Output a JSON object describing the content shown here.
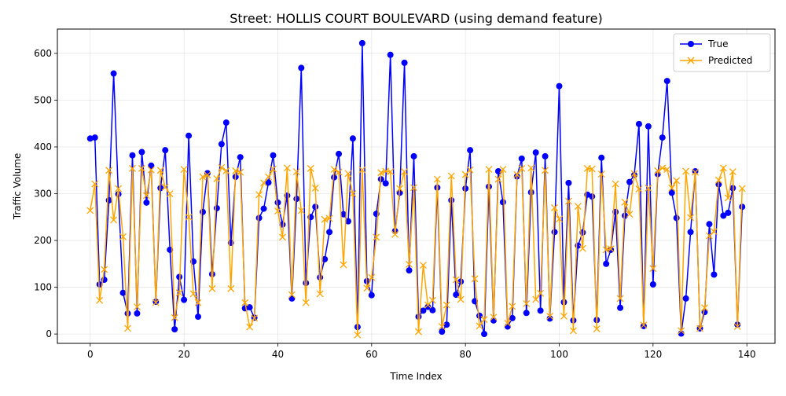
{
  "chart_data": {
    "type": "line",
    "title": "Street: HOLLIS COURT BOULEVARD (using demand feature)",
    "xlabel": "Time Index",
    "ylabel": "Traffic Volume",
    "xlim": [
      -7,
      146
    ],
    "ylim": [
      -20,
      652
    ],
    "xticks": [
      0,
      20,
      40,
      60,
      80,
      100,
      120,
      140
    ],
    "yticks": [
      0,
      100,
      200,
      300,
      400,
      500,
      600
    ],
    "grid": true,
    "legend_position": "top-right",
    "series": [
      {
        "name": "True",
        "color": "#0000ff",
        "marker": "circle",
        "values": [
          418,
          420,
          106,
          116,
          286,
          557,
          299,
          88,
          44,
          382,
          44,
          389,
          281,
          360,
          69,
          312,
          393,
          180,
          10,
          122,
          73,
          424,
          155,
          37,
          261,
          344,
          128,
          269,
          406,
          452,
          195,
          336,
          378,
          55,
          57,
          35,
          248,
          268,
          324,
          382,
          281,
          234,
          296,
          76,
          289,
          569,
          109,
          250,
          272,
          121,
          160,
          218,
          335,
          385,
          256,
          241,
          418,
          15,
          622,
          113,
          83,
          257,
          331,
          322,
          597,
          220,
          302,
          580,
          136,
          380,
          37,
          50,
          58,
          51,
          313,
          5,
          20,
          286,
          84,
          112,
          311,
          393,
          70,
          39,
          0,
          315,
          29,
          348,
          282,
          16,
          34,
          337,
          375,
          45,
          303,
          388,
          50,
          380,
          33,
          218,
          530,
          68,
          323,
          29,
          189,
          217,
          298,
          294,
          30,
          377,
          150,
          180,
          261,
          56,
          253,
          325,
          340,
          449,
          17,
          444,
          106,
          342,
          420,
          541,
          302,
          248,
          1,
          76,
          218,
          348,
          12,
          47,
          235,
          127,
          320,
          253,
          259,
          312,
          20,
          272
        ]
      },
      {
        "name": "Predicted",
        "color": "#ffa500",
        "marker": "x",
        "values": [
          264,
          321,
          72,
          138,
          350,
          244,
          311,
          208,
          12,
          354,
          58,
          354,
          296,
          351,
          67,
          350,
          314,
          300,
          35,
          88,
          352,
          250,
          86,
          67,
          336,
          340,
          97,
          332,
          356,
          349,
          97,
          349,
          346,
          67,
          15,
          34,
          298,
          323,
          336,
          353,
          263,
          207,
          355,
          84,
          347,
          264,
          67,
          354,
          312,
          86,
          245,
          247,
          352,
          346,
          148,
          343,
          300,
          -2,
          351,
          98,
          121,
          207,
          345,
          348,
          347,
          213,
          311,
          347,
          149,
          313,
          5,
          147,
          62,
          72,
          331,
          16,
          62,
          338,
          116,
          74,
          341,
          351,
          118,
          17,
          31,
          352,
          36,
          331,
          352,
          23,
          59,
          341,
          354,
          65,
          355,
          74,
          87,
          350,
          38,
          270,
          246,
          38,
          284,
          7,
          273,
          183,
          354,
          353,
          11,
          342,
          180,
          182,
          321,
          76,
          282,
          256,
          343,
          310,
          19,
          312,
          140,
          349,
          355,
          352,
          312,
          328,
          7,
          348,
          249,
          346,
          12,
          56,
          210,
          219,
          329,
          355,
          291,
          347,
          16,
          311
        ]
      }
    ]
  }
}
